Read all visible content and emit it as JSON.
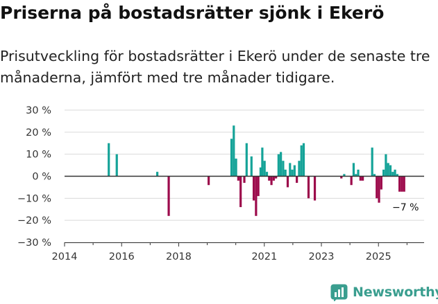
{
  "title": "Priserna på bostadsrätter sjönk i Ekerö",
  "subtitle": "Prisutveckling för bostadsrätter i Ekerö under de senaste tre månaderna, jämfört med tre månader tidigare.",
  "logo": {
    "icon": "newsworthy-chart-icon",
    "text": "Newsworthy"
  },
  "colors": {
    "positive": "#15a398",
    "negative": "#9c0a4b",
    "zero_line": "#333333",
    "grid": "#d9d9d9"
  },
  "chart_data": {
    "type": "bar",
    "title": "Priserna på bostadsrätter sjönk i Ekerö",
    "xlabel": "",
    "ylabel": "",
    "ylim": [
      -30,
      30
    ],
    "xlim": [
      2014,
      2026.6
    ],
    "y_ticks": [
      {
        "value": 30,
        "label": "30 %"
      },
      {
        "value": 20,
        "label": "20 %"
      },
      {
        "value": 10,
        "label": "10 %"
      },
      {
        "value": 0,
        "label": "0 %"
      },
      {
        "value": -10,
        "label": "−10 %"
      },
      {
        "value": -20,
        "label": "−20 %"
      },
      {
        "value": -30,
        "label": "−30 %"
      }
    ],
    "x_ticks": [
      {
        "value": 2014,
        "label": "2014"
      },
      {
        "value": 2016,
        "label": "2016"
      },
      {
        "value": 2018,
        "label": "2018"
      },
      {
        "value": 2021,
        "label": "2021"
      },
      {
        "value": 2023,
        "label": "2023"
      },
      {
        "value": 2025,
        "label": "2025"
      }
    ],
    "x_minor_ticks": [
      2015,
      2017,
      2019,
      2020,
      2022,
      2024,
      2026
    ],
    "bars": [
      {
        "x": 2015.55,
        "value": 15
      },
      {
        "x": 2015.83,
        "value": 10
      },
      {
        "x": 2017.25,
        "value": 2
      },
      {
        "x": 2017.65,
        "value": -18
      },
      {
        "x": 2019.05,
        "value": -4
      },
      {
        "x": 2019.85,
        "value": 17
      },
      {
        "x": 2019.93,
        "value": 23
      },
      {
        "x": 2020.01,
        "value": 8
      },
      {
        "x": 2020.09,
        "value": -2
      },
      {
        "x": 2020.17,
        "value": -14
      },
      {
        "x": 2020.3,
        "value": -3
      },
      {
        "x": 2020.38,
        "value": 15
      },
      {
        "x": 2020.55,
        "value": 9
      },
      {
        "x": 2020.63,
        "value": -11
      },
      {
        "x": 2020.71,
        "value": -18
      },
      {
        "x": 2020.79,
        "value": -9
      },
      {
        "x": 2020.87,
        "value": 4
      },
      {
        "x": 2020.93,
        "value": 13
      },
      {
        "x": 2021.01,
        "value": 7
      },
      {
        "x": 2021.09,
        "value": 2
      },
      {
        "x": 2021.17,
        "value": -2
      },
      {
        "x": 2021.25,
        "value": -4
      },
      {
        "x": 2021.33,
        "value": -2
      },
      {
        "x": 2021.41,
        "value": -1
      },
      {
        "x": 2021.5,
        "value": 10
      },
      {
        "x": 2021.58,
        "value": 11
      },
      {
        "x": 2021.66,
        "value": 7
      },
      {
        "x": 2021.74,
        "value": 3
      },
      {
        "x": 2021.82,
        "value": -5
      },
      {
        "x": 2021.9,
        "value": 6
      },
      {
        "x": 2021.98,
        "value": 3
      },
      {
        "x": 2022.06,
        "value": 5
      },
      {
        "x": 2022.14,
        "value": -3
      },
      {
        "x": 2022.22,
        "value": 7
      },
      {
        "x": 2022.3,
        "value": 14
      },
      {
        "x": 2022.38,
        "value": 15
      },
      {
        "x": 2022.55,
        "value": -10
      },
      {
        "x": 2022.77,
        "value": -11
      },
      {
        "x": 2023.7,
        "value": -1
      },
      {
        "x": 2023.8,
        "value": 1
      },
      {
        "x": 2024.05,
        "value": -4
      },
      {
        "x": 2024.13,
        "value": 6
      },
      {
        "x": 2024.21,
        "value": 1
      },
      {
        "x": 2024.29,
        "value": 3
      },
      {
        "x": 2024.37,
        "value": -2
      },
      {
        "x": 2024.45,
        "value": -2
      },
      {
        "x": 2024.78,
        "value": 13
      },
      {
        "x": 2024.86,
        "value": 1
      },
      {
        "x": 2024.94,
        "value": -10
      },
      {
        "x": 2025.02,
        "value": -12
      },
      {
        "x": 2025.1,
        "value": -6
      },
      {
        "x": 2025.18,
        "value": 3
      },
      {
        "x": 2025.26,
        "value": 10
      },
      {
        "x": 2025.34,
        "value": 6
      },
      {
        "x": 2025.42,
        "value": 5
      },
      {
        "x": 2025.5,
        "value": 2
      },
      {
        "x": 2025.58,
        "value": 3
      },
      {
        "x": 2025.66,
        "value": 1
      },
      {
        "x": 2025.74,
        "value": -7
      },
      {
        "x": 2025.82,
        "value": -7
      },
      {
        "x": 2025.9,
        "value": -7
      }
    ],
    "annotation": {
      "x": 2025.9,
      "value": -7,
      "label": "−7 %"
    }
  }
}
